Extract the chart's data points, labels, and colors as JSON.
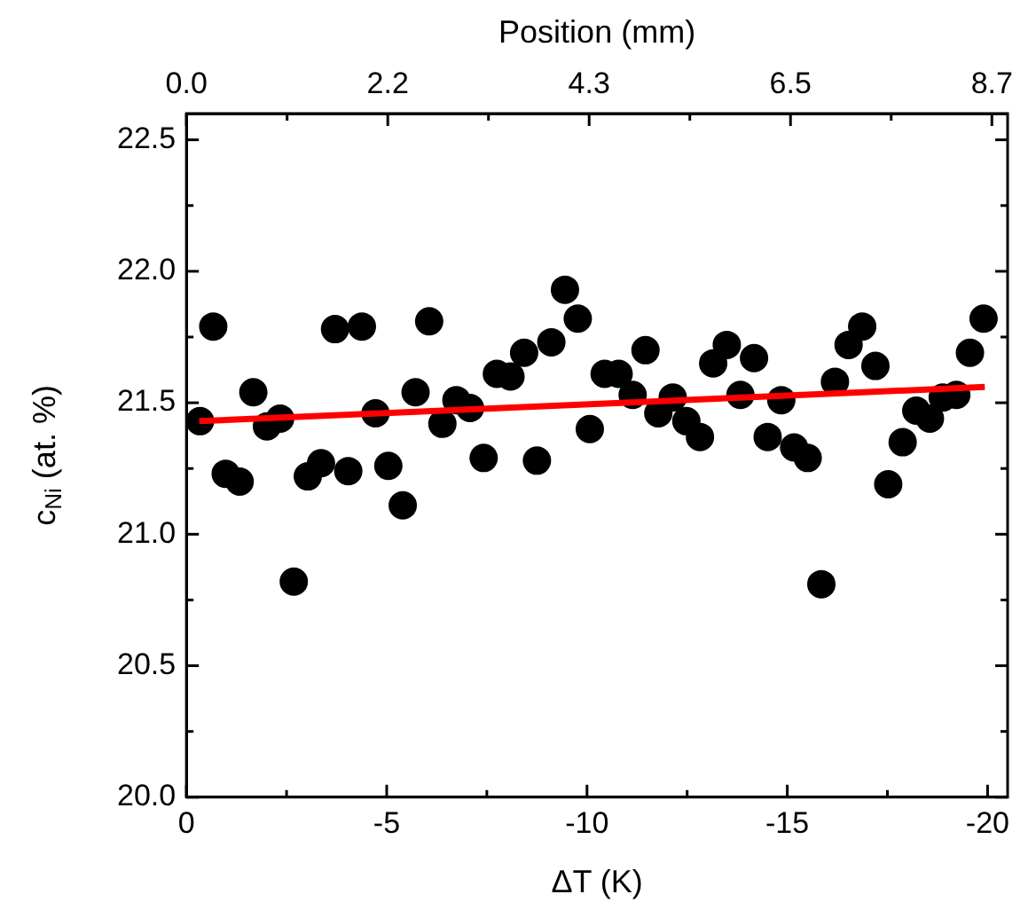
{
  "chart_data": {
    "type": "scatter",
    "xlabel": "ΔT (K)",
    "ylabel": "c$_{Ni}$ (at. %)",
    "x2label": "Position (mm)",
    "xlim": [
      0,
      -20.5
    ],
    "xticks": [
      0,
      {
        "value": -2.5,
        "label": null
      },
      -5,
      {
        "value": -7.5,
        "label": null
      },
      -10,
      {
        "value": -12.5,
        "label": null
      },
      -15,
      {
        "value": -17.5,
        "label": null
      },
      -20
    ],
    "x2lim": [
      0,
      8.87
    ],
    "x2ticks": [
      {
        "value": 0,
        "label": "0.0"
      },
      {
        "value": 1.0875,
        "label": null
      },
      {
        "value": 2.175,
        "label": "2.2"
      },
      {
        "value": 3.2625,
        "label": null
      },
      {
        "value": 4.35,
        "label": "4.3"
      },
      {
        "value": 5.4375,
        "label": null
      },
      {
        "value": 6.525,
        "label": "6.5"
      },
      {
        "value": 7.6125,
        "label": null
      },
      8.7
    ],
    "ylim": [
      20,
      22.6
    ],
    "yticks": [
      {
        "value": 20,
        "label": "20.0"
      },
      {
        "value": 20.25,
        "label": null
      },
      20.5,
      {
        "value": 20.75,
        "label": null
      },
      {
        "value": 21,
        "label": "21.0"
      },
      {
        "value": 21.25,
        "label": null
      },
      21.5,
      {
        "value": 21.75,
        "label": null
      },
      {
        "value": 22,
        "label": "22.0"
      },
      {
        "value": 22.25,
        "label": null
      },
      22.5
    ],
    "grid": false,
    "legend": false,
    "series": [
      {
        "marker": "circle",
        "color": "#000000",
        "x": [
          -0.34,
          -0.67,
          -0.98,
          -1.33,
          -1.67,
          -2.01,
          -2.34,
          -2.68,
          -3.03,
          -3.36,
          -3.71,
          -4.04,
          -4.38,
          -4.72,
          -5.04,
          -5.4,
          -5.72,
          -6.06,
          -6.39,
          -6.74,
          -7.08,
          -7.42,
          -7.75,
          -8.09,
          -8.43,
          -8.75,
          -9.11,
          -9.45,
          -9.77,
          -10.07,
          -10.44,
          -10.79,
          -11.14,
          -11.46,
          -11.78,
          -12.14,
          -12.48,
          -12.82,
          -13.15,
          -13.49,
          -13.83,
          -14.17,
          -14.51,
          -14.85,
          -15.17,
          -15.51,
          -15.85,
          -16.19,
          -16.53,
          -16.87,
          -17.2,
          -17.52,
          -17.88,
          -18.22,
          -18.56,
          -18.88,
          -19.22,
          -19.56,
          -19.9
        ],
        "values": [
          21.43,
          21.79,
          21.23,
          21.2,
          21.54,
          21.41,
          21.44,
          20.82,
          21.22,
          21.27,
          21.78,
          21.24,
          21.79,
          21.46,
          21.26,
          21.11,
          21.54,
          21.81,
          21.42,
          21.51,
          21.48,
          21.29,
          21.61,
          21.6,
          21.69,
          21.28,
          21.73,
          21.93,
          21.82,
          21.4,
          21.61,
          21.61,
          21.53,
          21.7,
          21.46,
          21.52,
          21.43,
          21.37,
          21.65,
          21.72,
          21.53,
          21.67,
          21.37,
          21.51,
          21.33,
          21.29,
          20.81,
          21.58,
          21.72,
          21.79,
          21.64,
          21.19,
          21.35,
          21.47,
          21.44,
          21.52,
          21.53,
          21.69,
          21.82
        ]
      },
      {
        "type": "line",
        "marker": "none",
        "color": "#ff0000",
        "x": [
          -0.32,
          -19.93
        ],
        "values": [
          21.43,
          21.56
        ]
      }
    ]
  }
}
